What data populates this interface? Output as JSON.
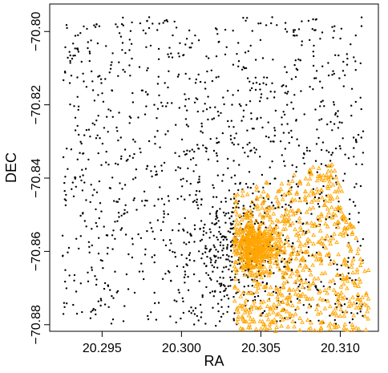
{
  "chart_data": {
    "type": "scatter",
    "title": "",
    "xlabel": "RA",
    "ylabel": "DEC",
    "xlim": [
      20.2917,
      20.3124
    ],
    "ylim": [
      -70.8818,
      -70.7925
    ],
    "y_inverted": true,
    "x_ticks": [
      20.295,
      20.3,
      20.305,
      20.31
    ],
    "x_tick_labels": [
      "20.295",
      "20.300",
      "20.305",
      "20.310"
    ],
    "y_ticks": [
      -70.8,
      -70.82,
      -70.84,
      -70.86,
      -70.88
    ],
    "y_tick_labels": [
      "−70.80",
      "−70.82",
      "−70.84",
      "−70.86",
      "−70.88"
    ],
    "grid": false,
    "legend": "none",
    "colors": {
      "background_stars": "#000000",
      "cluster": "#FFA500"
    },
    "series": [
      {
        "marker": "dot",
        "color": "#000000",
        "point_count_approx": 1500,
        "distribution": "roughly uniform over the field, denser near RA 20.302-20.306, DEC -70.85 to -70.87",
        "extent": {
          "ra": [
            20.2925,
            20.3115
          ],
          "dec": [
            -70.88,
            -70.796
          ]
        }
      },
      {
        "marker": "triangle",
        "color": "#FFA500",
        "point_count_approx": 1100,
        "distribution": "dense clump centered near RA 20.3047, DEC -70.859, extending toward lower-right",
        "extent": {
          "ra": [
            20.3033,
            20.3118
          ],
          "dec": [
            -70.8818,
            -70.8355
          ]
        },
        "core": {
          "ra": 20.3047,
          "dec": -70.859
        }
      }
    ]
  }
}
